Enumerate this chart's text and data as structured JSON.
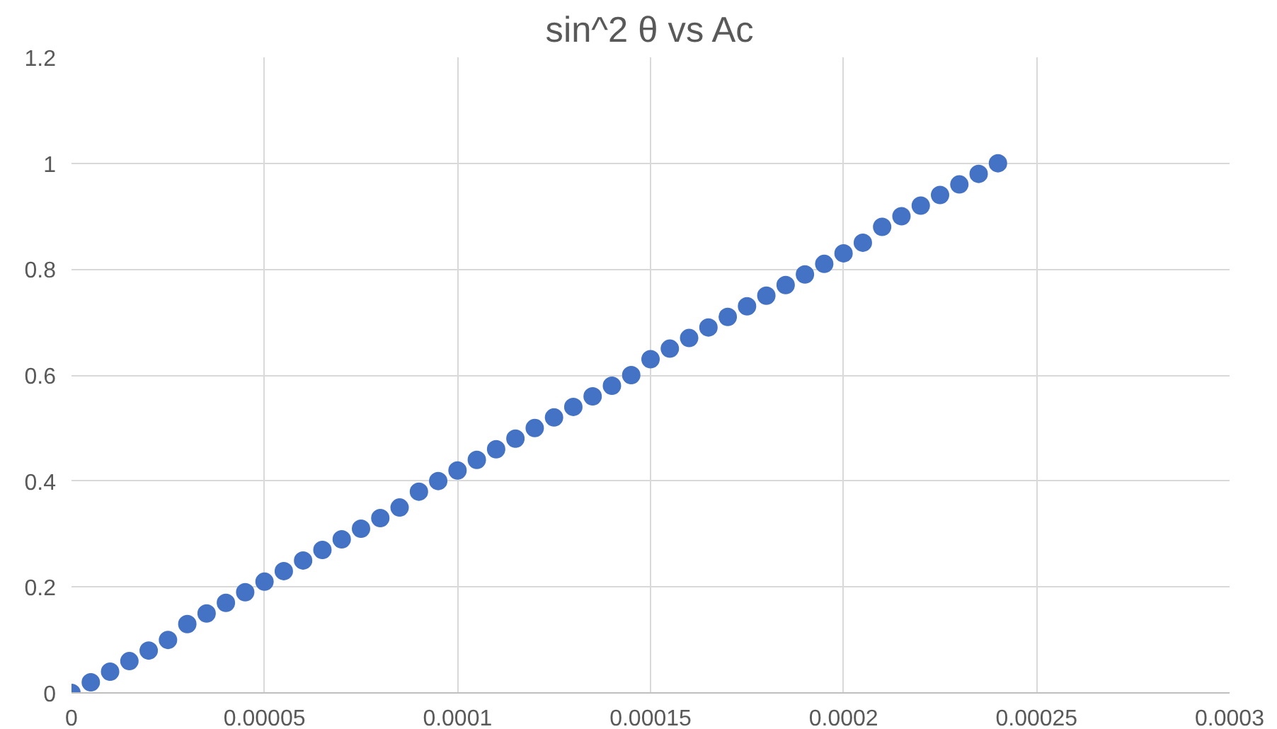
{
  "chart_data": {
    "type": "scatter",
    "title": "sin^2 θ vs Ac",
    "x": [
      0,
      5e-06,
      1e-05,
      1.5e-05,
      2e-05,
      2.5e-05,
      3e-05,
      3.5e-05,
      4e-05,
      4.5e-05,
      5e-05,
      5.5e-05,
      6e-05,
      6.5e-05,
      7e-05,
      7.5e-05,
      8e-05,
      8.5e-05,
      9e-05,
      9.5e-05,
      0.0001,
      0.000105,
      0.00011,
      0.000115,
      0.00012,
      0.000125,
      0.00013,
      0.000135,
      0.00014,
      0.000145,
      0.00015,
      0.000155,
      0.00016,
      0.000165,
      0.00017,
      0.000175,
      0.00018,
      0.000185,
      0.00019,
      0.000195,
      0.0002,
      0.000205,
      0.00021,
      0.000215,
      0.00022,
      0.000225,
      0.00023,
      0.000235,
      0.00024
    ],
    "series": [
      {
        "color": "#4472c4",
        "values": [
          0,
          0.02,
          0.04,
          0.06,
          0.08,
          0.1,
          0.13,
          0.15,
          0.17,
          0.19,
          0.21,
          0.23,
          0.25,
          0.27,
          0.29,
          0.31,
          0.33,
          0.35,
          0.38,
          0.4,
          0.42,
          0.44,
          0.46,
          0.48,
          0.5,
          0.52,
          0.54,
          0.56,
          0.58,
          0.6,
          0.63,
          0.65,
          0.67,
          0.69,
          0.71,
          0.73,
          0.75,
          0.77,
          0.79,
          0.81,
          0.83,
          0.85,
          0.88,
          0.9,
          0.92,
          0.94,
          0.96,
          0.98,
          1
        ]
      }
    ],
    "xlim": [
      0,
      0.0003
    ],
    "ylim": [
      0,
      1.2
    ],
    "xticks": [
      0,
      {
        "value": 5e-05,
        "label": "0.00005"
      },
      {
        "value": 0.0001,
        "label": "0.0001"
      },
      {
        "value": 0.00015,
        "label": "0.00015"
      },
      {
        "value": 0.0002,
        "label": "0.0002"
      },
      {
        "value": 0.00025,
        "label": "0.00025"
      },
      {
        "value": 0.0003,
        "label": "0.0003"
      }
    ],
    "yticks": [
      0,
      0.2,
      0.4,
      0.6,
      0.8,
      1,
      1.2
    ],
    "grid": true,
    "marker": "circle"
  }
}
